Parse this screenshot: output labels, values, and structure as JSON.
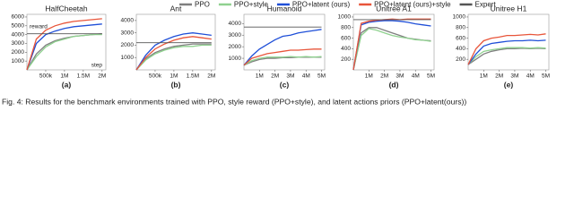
{
  "legend": [
    {
      "name": "PPO",
      "color": "#7f7f7f"
    },
    {
      "name": "PPO+style",
      "color": "#8fd18f"
    },
    {
      "name": "PPO+latent (ours)",
      "color": "#1f4fd8"
    },
    {
      "name": "PPO+latent (ours)+style",
      "color": "#e8553a"
    },
    {
      "name": "Expert",
      "color": "#555555"
    }
  ],
  "chart_data": [
    {
      "type": "line",
      "label": "(a)",
      "title": "HalfCheetah",
      "ylabel": "reward",
      "xlabel": "step",
      "x": [
        0,
        250000,
        500000,
        750000,
        1000000,
        1250000,
        1500000,
        1750000,
        2000000
      ],
      "xlim": [
        0,
        2100000
      ],
      "xticks": [
        {
          "value": 500000,
          "label": "500k"
        },
        {
          "value": 1000000,
          "label": "1M"
        },
        {
          "value": 1500000,
          "label": "1.5M"
        },
        {
          "value": 2000000,
          "label": "2M"
        }
      ],
      "ylim": [
        0,
        6300
      ],
      "yticks": [
        1000,
        2000,
        3000,
        4000,
        5000,
        6000
      ],
      "series": [
        {
          "values": [
            0,
            1800,
            2800,
            3300,
            3600,
            3800,
            3900,
            4000,
            4100
          ]
        },
        {
          "values": [
            0,
            1500,
            2600,
            3200,
            3500,
            3800,
            3900,
            4000,
            4000
          ]
        },
        {
          "values": [
            0,
            3000,
            4000,
            4400,
            4700,
            4900,
            5000,
            5100,
            5200
          ]
        },
        {
          "values": [
            0,
            3500,
            4500,
            5000,
            5300,
            5500,
            5600,
            5700,
            5800
          ]
        },
        {
          "values": [
            4100,
            4100,
            4100,
            4100,
            4100,
            4100,
            4100,
            4100,
            4100
          ]
        }
      ]
    },
    {
      "type": "line",
      "label": "(b)",
      "title": "Ant",
      "x": [
        0,
        250000,
        500000,
        750000,
        1000000,
        1250000,
        1500000,
        1750000,
        2000000
      ],
      "xlim": [
        0,
        2100000
      ],
      "xticks": [
        {
          "value": 500000,
          "label": "500k"
        },
        {
          "value": 1000000,
          "label": "1M"
        },
        {
          "value": 1500000,
          "label": "1.5M"
        },
        {
          "value": 2000000,
          "label": "2M"
        }
      ],
      "ylim": [
        0,
        4500
      ],
      "yticks": [
        1000,
        2000,
        3000,
        4000
      ],
      "series": [
        {
          "values": [
            0,
            900,
            1400,
            1700,
            1900,
            2000,
            2100,
            2100,
            2100
          ]
        },
        {
          "values": [
            0,
            800,
            1300,
            1600,
            1800,
            1900,
            1900,
            2000,
            2000
          ]
        },
        {
          "values": [
            0,
            1200,
            2000,
            2400,
            2700,
            2900,
            3000,
            2900,
            2800
          ]
        },
        {
          "values": [
            0,
            1000,
            1700,
            2100,
            2400,
            2600,
            2700,
            2600,
            2500
          ]
        },
        {
          "values": [
            2200,
            2200,
            2200,
            2200,
            2200,
            2200,
            2200,
            2200,
            2200
          ]
        }
      ]
    },
    {
      "type": "line",
      "label": "(c)",
      "title": "Humanoid",
      "x": [
        0,
        500000,
        1000000,
        1500000,
        2000000,
        2500000,
        3000000,
        3500000,
        4000000,
        4500000,
        5000000
      ],
      "xlim": [
        0,
        5200000
      ],
      "xticks": [
        {
          "value": 1000000,
          "label": "1M"
        },
        {
          "value": 2000000,
          "label": "2M"
        },
        {
          "value": 3000000,
          "label": "3M"
        },
        {
          "value": 4000000,
          "label": "4M"
        },
        {
          "value": 5000000,
          "label": "5M"
        }
      ],
      "ylim": [
        0,
        4800
      ],
      "yticks": [
        1000,
        2000,
        3000,
        4000
      ],
      "series": [
        {
          "values": [
            400,
            700,
            900,
            1000,
            1000,
            1050,
            1050,
            1100,
            1100,
            1100,
            1100
          ]
        },
        {
          "values": [
            400,
            800,
            1000,
            1100,
            1100,
            1100,
            1150,
            1100,
            1150,
            1100,
            1150
          ]
        },
        {
          "values": [
            400,
            1200,
            1800,
            2200,
            2600,
            2900,
            3000,
            3200,
            3300,
            3400,
            3500
          ]
        },
        {
          "values": [
            400,
            1000,
            1200,
            1400,
            1500,
            1600,
            1700,
            1700,
            1750,
            1800,
            1800
          ]
        },
        {
          "values": [
            3700,
            3700,
            3700,
            3700,
            3700,
            3700,
            3700,
            3700,
            3700,
            3700,
            3700
          ]
        }
      ]
    },
    {
      "type": "line",
      "label": "(d)",
      "title": "Unitree A1",
      "x": [
        0,
        500000,
        1000000,
        1500000,
        2000000,
        2500000,
        3000000,
        3500000,
        4000000,
        4500000,
        5000000
      ],
      "xlim": [
        0,
        5200000
      ],
      "xticks": [
        {
          "value": 1000000,
          "label": "1M"
        },
        {
          "value": 2000000,
          "label": "2M"
        },
        {
          "value": 3000000,
          "label": "3M"
        },
        {
          "value": 4000000,
          "label": "4M"
        },
        {
          "value": 5000000,
          "label": "5M"
        }
      ],
      "ylim": [
        0,
        1050
      ],
      "yticks": [
        200,
        400,
        600,
        800,
        1000
      ],
      "series": [
        {
          "values": [
            0,
            700,
            800,
            800,
            750,
            700,
            650,
            600,
            580,
            560,
            550
          ]
        },
        {
          "values": [
            0,
            650,
            780,
            750,
            700,
            650,
            620,
            600,
            570,
            560,
            540
          ]
        },
        {
          "values": [
            0,
            850,
            900,
            920,
            930,
            930,
            920,
            900,
            870,
            850,
            830
          ]
        },
        {
          "values": [
            0,
            880,
            920,
            940,
            950,
            960,
            950,
            960,
            960,
            960,
            960
          ]
        },
        {
          "values": [
            950,
            950,
            950,
            950,
            950,
            950,
            950,
            950,
            950,
            950,
            950
          ]
        }
      ]
    },
    {
      "type": "line",
      "label": "(e)",
      "title": "Unitree H1",
      "x": [
        0,
        500000,
        1000000,
        1500000,
        2000000,
        2500000,
        3000000,
        3500000,
        4000000,
        4500000,
        5000000
      ],
      "xlim": [
        0,
        5200000
      ],
      "xticks": [
        {
          "value": 1000000,
          "label": "1M"
        },
        {
          "value": 2000000,
          "label": "2M"
        },
        {
          "value": 3000000,
          "label": "3M"
        },
        {
          "value": 4000000,
          "label": "4M"
        },
        {
          "value": 5000000,
          "label": "5M"
        }
      ],
      "ylim": [
        0,
        1050
      ],
      "yticks": [
        200,
        400,
        600,
        800,
        1000
      ],
      "series": [
        {
          "values": [
            100,
            200,
            300,
            350,
            380,
            400,
            400,
            410,
            400,
            410,
            400
          ]
        },
        {
          "values": [
            100,
            250,
            350,
            380,
            400,
            420,
            420,
            420,
            410,
            420,
            410
          ]
        },
        {
          "values": [
            100,
            300,
            450,
            500,
            520,
            540,
            550,
            550,
            560,
            550,
            560
          ]
        },
        {
          "values": [
            100,
            400,
            550,
            600,
            620,
            650,
            650,
            660,
            670,
            660,
            680
          ]
        }
      ]
    }
  ],
  "caption": "Fig. 4: Results for the benchmark environments trained with PPO, style reward (PPO+style), and latent actions priors (PPO+latent(ours))"
}
